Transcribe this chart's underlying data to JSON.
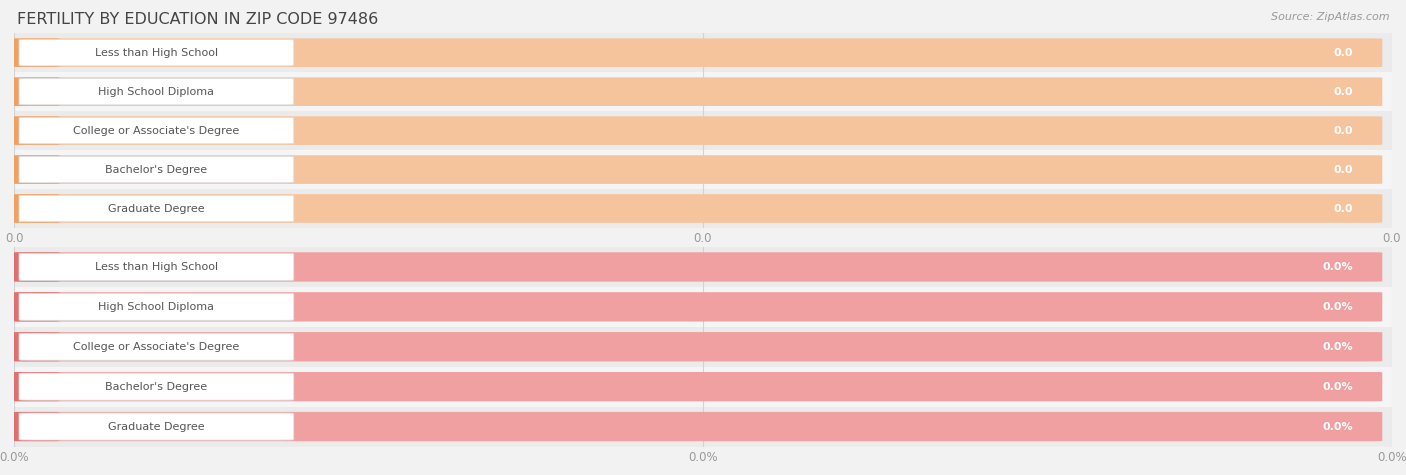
{
  "title": "FERTILITY BY EDUCATION IN ZIP CODE 97486",
  "source_text": "Source: ZipAtlas.com",
  "categories": [
    "Less than High School",
    "High School Diploma",
    "College or Associate's Degree",
    "Bachelor's Degree",
    "Graduate Degree"
  ],
  "top_values": [
    0.0,
    0.0,
    0.0,
    0.0,
    0.0
  ],
  "bottom_values": [
    0.0,
    0.0,
    0.0,
    0.0,
    0.0
  ],
  "top_bar_fill": "#F5C49C",
  "top_accent_color": "#F0A060",
  "bottom_bar_fill": "#F0A0A0",
  "bottom_accent_color": "#E07070",
  "bg_color": "#F2F2F2",
  "row_bg_odd": "#EBEBEB",
  "row_bg_even": "#F5F5F5",
  "grid_color": "#D0D0D0",
  "title_color": "#444444",
  "label_color": "#555555",
  "value_text_color": "#FFFFFF",
  "tick_label_color": "#999999",
  "x_tick_labels_top": [
    "0.0",
    "0.0",
    "0.0"
  ],
  "x_tick_labels_bottom": [
    "0.0%",
    "0.0%",
    "0.0%"
  ],
  "white_pill_color": "#FFFFFF",
  "white_pill_border": "#DDDDDD"
}
